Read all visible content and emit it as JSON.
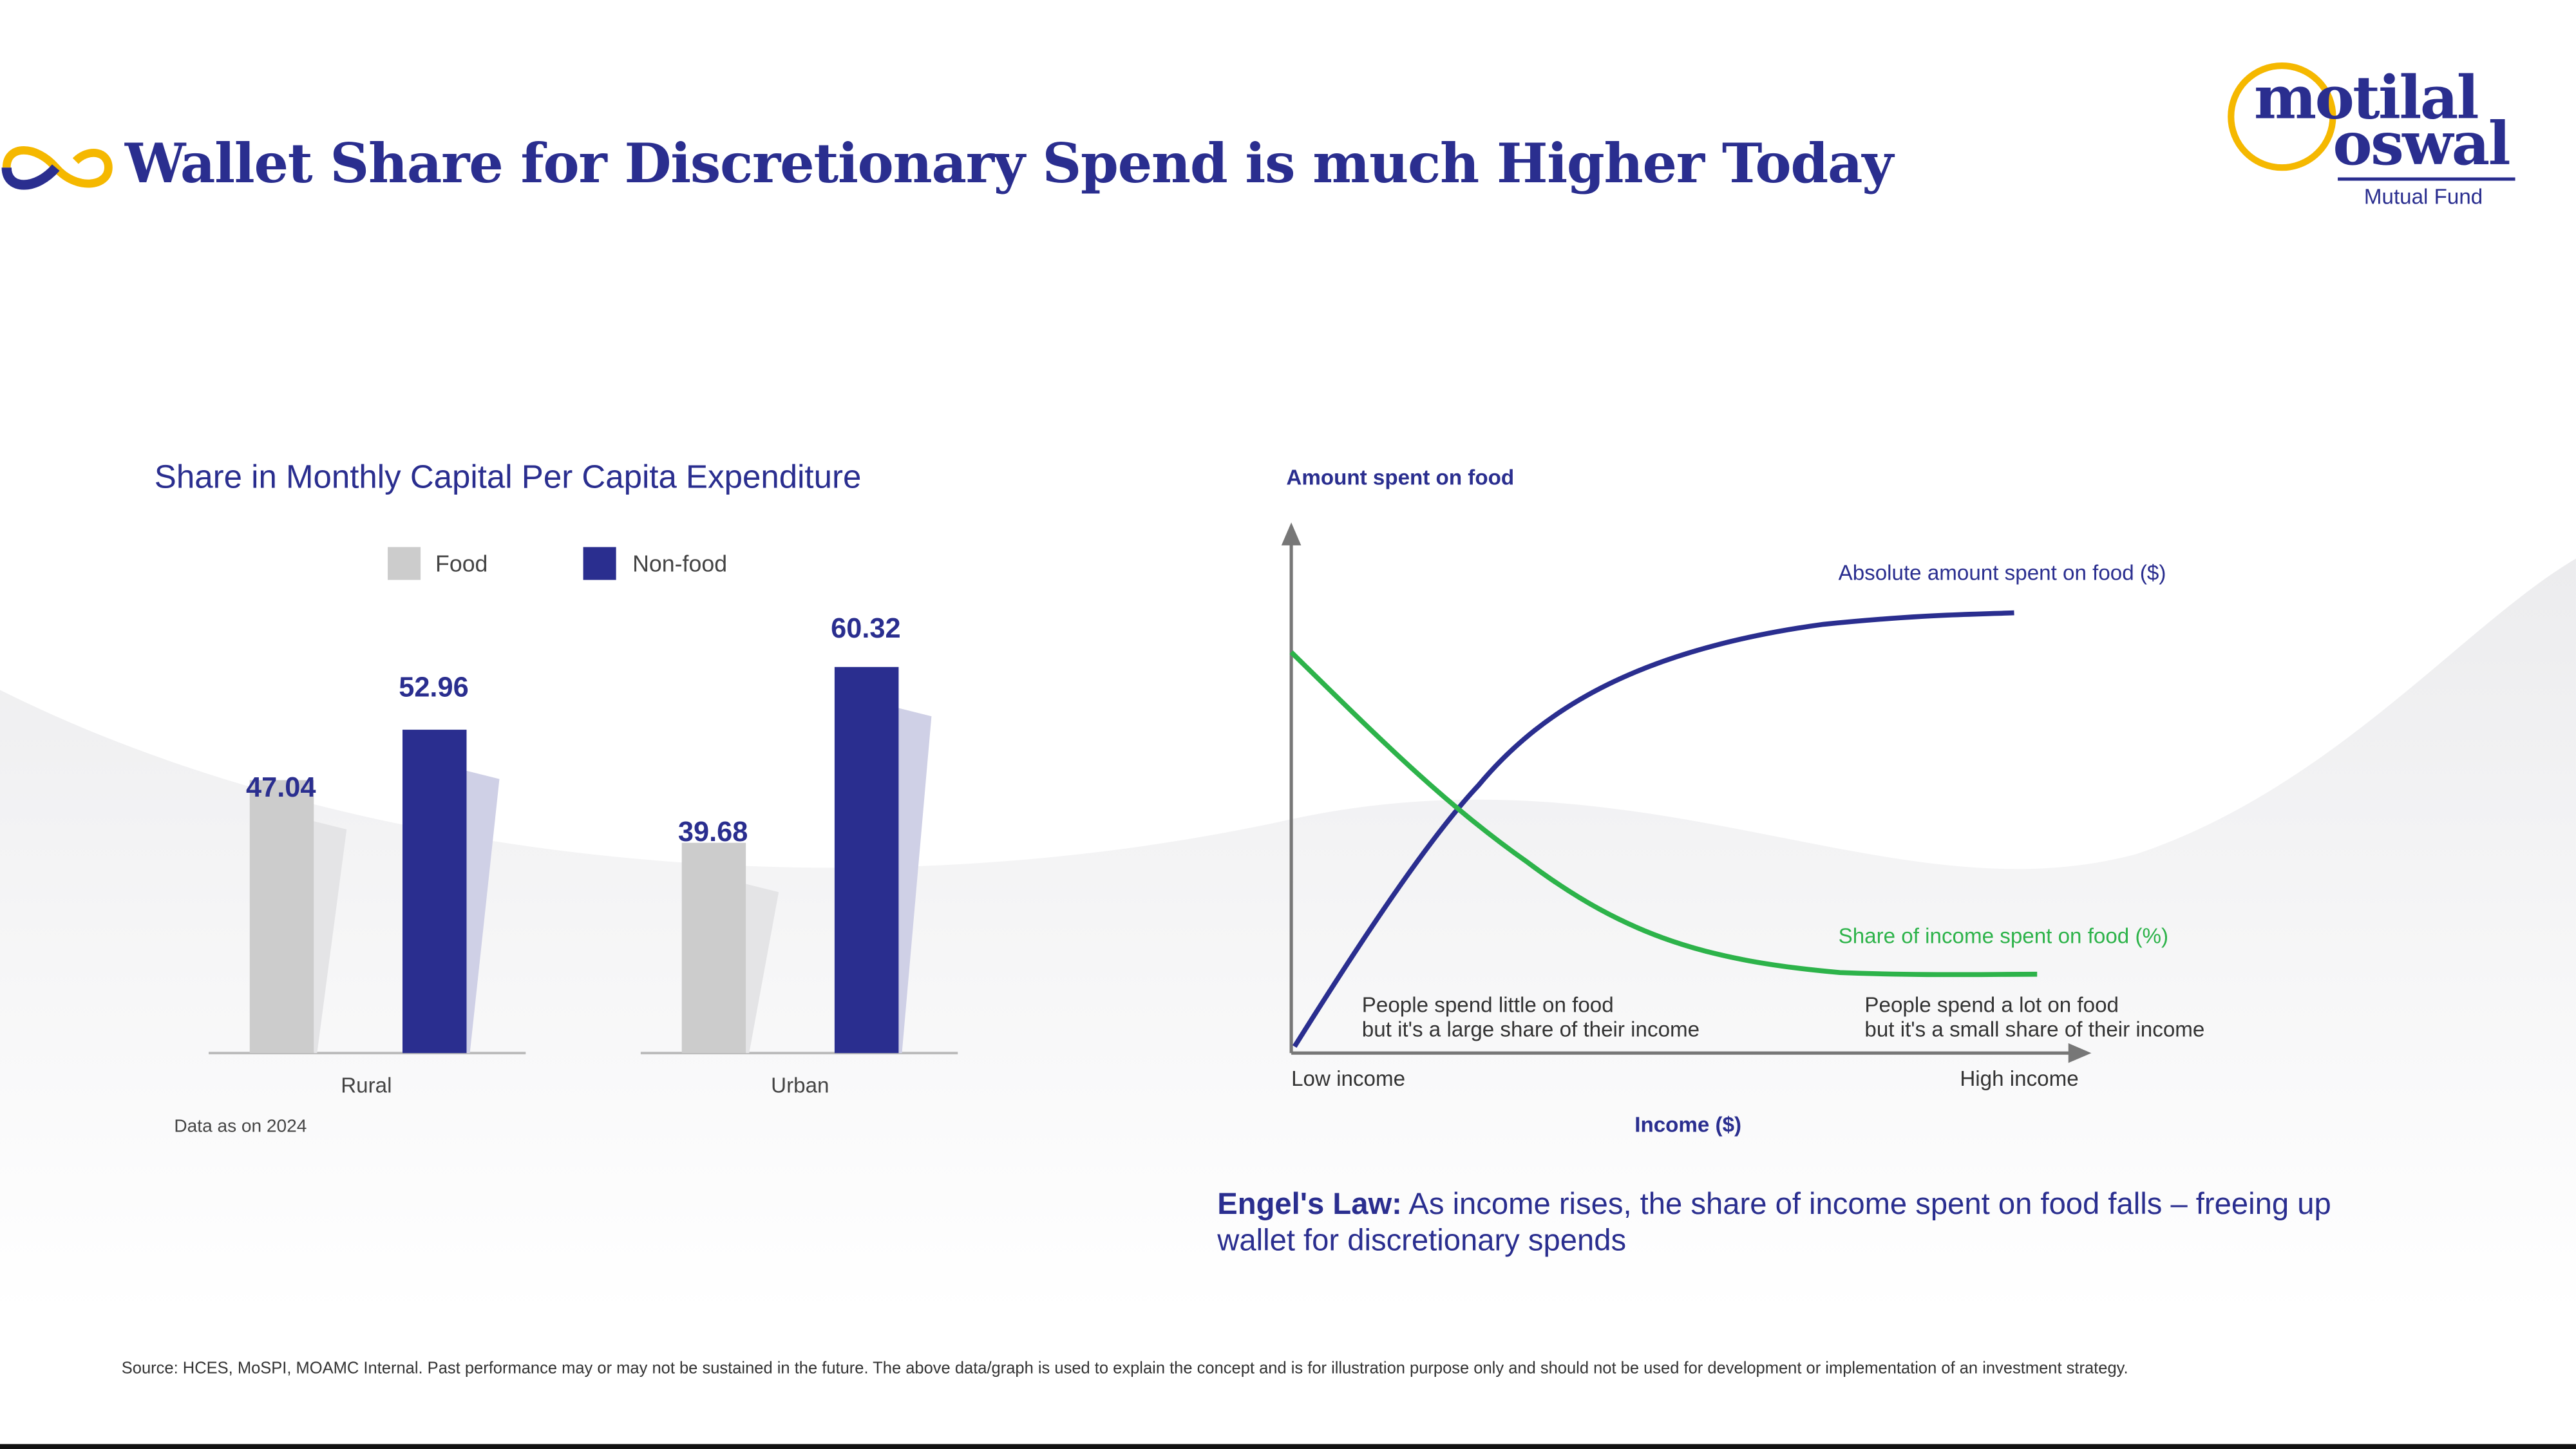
{
  "header": {
    "title": "Wallet Share for Discretionary Spend is much Higher Today",
    "brand": {
      "line1": "motilal",
      "line2": "oswal",
      "line3": "Mutual Fund"
    }
  },
  "colors": {
    "navy": "#2a2e8f",
    "food": "#cccccc",
    "green": "#2db34a",
    "yellow": "#f5b800"
  },
  "chart_data": [
    {
      "type": "bar",
      "title": "Share in Monthly Capital Per Capita Expenditure",
      "categories": [
        "Rural",
        "Urban"
      ],
      "series": [
        {
          "name": "Food",
          "values": [
            47.04,
            39.68
          ]
        },
        {
          "name": "Non-food",
          "values": [
            52.96,
            60.32
          ]
        }
      ],
      "value_labels": [
        [
          "47.04",
          "39.68"
        ],
        [
          "52.96",
          "60.32"
        ]
      ],
      "ylim": [
        15,
        62
      ],
      "legend": "top",
      "note": "Data as on 2024"
    },
    {
      "type": "line",
      "title": "Amount spent on food",
      "xlabel": "Income ($)",
      "x_ticks": [
        "Low income",
        "High income"
      ],
      "series": [
        {
          "name": "Absolute amount spent on food ($)",
          "trend": "rising, saturating"
        },
        {
          "name": "Share of income spent on food (%)",
          "trend": "falling, flattening"
        }
      ],
      "annotations": [
        [
          "People spend little on food",
          "but it's a large share of their income"
        ],
        [
          "People spend a lot on food",
          "but it's a small share of their income"
        ]
      ]
    }
  ],
  "engel": {
    "label": "Engel's Law:",
    "text": " As income rises, the share of income spent on food falls – freeing up wallet for discretionary spends"
  },
  "footer": {
    "source": "Source: HCES, MoSPI, MOAMC Internal. Past performance may or may not be sustained in the future. The above data/graph is used to explain the concept and is for illustration purpose only and should not be used for development or implementation of an investment strategy."
  }
}
